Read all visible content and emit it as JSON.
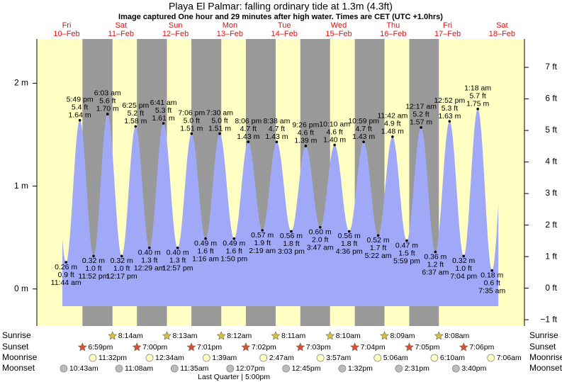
{
  "chart_data": {
    "type": "tide",
    "title": "Playa El Palmar: falling  ordinary tide at 1.3m (4.3ft)",
    "subtitle": "Image captured One hour and 29 minutes after high water. Times are CET (UTC +1.0hrs)",
    "days": [
      {
        "weekday": "Fri",
        "date": "10–Feb"
      },
      {
        "weekday": "Sat",
        "date": "11–Feb"
      },
      {
        "weekday": "Sun",
        "date": "12–Feb"
      },
      {
        "weekday": "Mon",
        "date": "13–Feb"
      },
      {
        "weekday": "Tue",
        "date": "14–Feb"
      },
      {
        "weekday": "Wed",
        "date": "15–Feb"
      },
      {
        "weekday": "Thu",
        "date": "16–Feb"
      },
      {
        "weekday": "Fri",
        "date": "17–Feb"
      },
      {
        "weekday": "Sat",
        "date": "18–Feb"
      }
    ],
    "extremes": [
      {
        "time": "11:44 am",
        "m": 0.26,
        "m_label": "0.26 m",
        "ft_label": "0.9 ft"
      },
      {
        "time": "5:49 pm",
        "m": 1.64,
        "m_label": "1.64 m",
        "ft_label": "5.4 ft"
      },
      {
        "time": "11:52 pm",
        "m": 0.32,
        "m_label": "0.32 m",
        "ft_label": "1.0 ft"
      },
      {
        "time": "6:03 am",
        "m": 1.7,
        "m_label": "1.70 m",
        "ft_label": "5.6 ft"
      },
      {
        "time": "12:17 pm",
        "m": 0.32,
        "m_label": "0.32 m",
        "ft_label": "1.0 ft"
      },
      {
        "time": "6:25 pm",
        "m": 1.58,
        "m_label": "1.58 m",
        "ft_label": "5.2 ft"
      },
      {
        "time": "12:29 am",
        "m": 0.4,
        "m_label": "0.40 m",
        "ft_label": "1.3 ft"
      },
      {
        "time": "6:41 am",
        "m": 1.61,
        "m_label": "1.61 m",
        "ft_label": "5.3 ft"
      },
      {
        "time": "12:57 pm",
        "m": 0.4,
        "m_label": "0.40 m",
        "ft_label": "1.3 ft"
      },
      {
        "time": "7:06 pm",
        "m": 1.51,
        "m_label": "1.51 m",
        "ft_label": "5.0 ft"
      },
      {
        "time": "1:16 am",
        "m": 0.49,
        "m_label": "0.49 m",
        "ft_label": "1.6 ft"
      },
      {
        "time": "7:30 am",
        "m": 1.51,
        "m_label": "1.51 m",
        "ft_label": "5.0 ft"
      },
      {
        "time": "1:50 pm",
        "m": 0.49,
        "m_label": "0.49 m",
        "ft_label": "1.6 ft"
      },
      {
        "time": "8:06 pm",
        "m": 1.43,
        "m_label": "1.43 m",
        "ft_label": "4.7 ft"
      },
      {
        "time": "2:19 am",
        "m": 0.57,
        "m_label": "0.57 m",
        "ft_label": "1.9 ft"
      },
      {
        "time": "8:38 am",
        "m": 1.43,
        "m_label": "1.43 m",
        "ft_label": "4.7 ft"
      },
      {
        "time": "3:03 pm",
        "m": 0.56,
        "m_label": "0.56 m",
        "ft_label": "1.8 ft"
      },
      {
        "time": "9:26 pm",
        "m": 1.39,
        "m_label": "1.39 m",
        "ft_label": "4.6 ft"
      },
      {
        "time": "3:47 am",
        "m": 0.6,
        "m_label": "0.60 m",
        "ft_label": "2.0 ft"
      },
      {
        "time": "10:10 am",
        "m": 1.4,
        "m_label": "1.40 m",
        "ft_label": "4.6 ft"
      },
      {
        "time": "4:36 pm",
        "m": 0.56,
        "m_label": "0.56 m",
        "ft_label": "1.8 ft"
      },
      {
        "time": "10:59 pm",
        "m": 1.43,
        "m_label": "1.43 m",
        "ft_label": "4.7 ft"
      },
      {
        "time": "5:22 am",
        "m": 0.52,
        "m_label": "0.52 m",
        "ft_label": "1.7 ft"
      },
      {
        "time": "11:42 am",
        "m": 1.48,
        "m_label": "1.48 m",
        "ft_label": "4.9 ft"
      },
      {
        "time": "5:59 pm",
        "m": 0.47,
        "m_label": "0.47 m",
        "ft_label": "1.5 ft"
      },
      {
        "time": "12:17 am",
        "m": 1.57,
        "m_label": "1.57 m",
        "ft_label": "5.2 ft"
      },
      {
        "time": "6:37 am",
        "m": 0.36,
        "m_label": "0.36 m",
        "ft_label": "1.2 ft"
      },
      {
        "time": "12:52 pm",
        "m": 1.63,
        "m_label": "1.63 m",
        "ft_label": "5.3 ft"
      },
      {
        "time": "7:04 pm",
        "m": 0.32,
        "m_label": "0.32 m",
        "ft_label": "1.0 ft"
      },
      {
        "time": "1:18 am",
        "m": 1.75,
        "m_label": "1.75 m",
        "ft_label": "5.7 ft"
      },
      {
        "time": "7:35 am",
        "m": 0.18,
        "m_label": "0.18 m",
        "ft_label": "0.6 ft"
      }
    ],
    "ylim": [
      -0.36,
      2.43
    ],
    "yticks": [
      {
        "value": 0,
        "label": "0 m"
      },
      {
        "value": 1,
        "label": "1 m"
      },
      {
        "value": 2,
        "label": "2 m"
      }
    ],
    "y2lim": [
      -1.2,
      7.9
    ],
    "y2ticks": [
      {
        "value": -1,
        "label": "−1 ft"
      },
      {
        "value": 0,
        "label": "0 ft"
      },
      {
        "value": 1,
        "label": "1 ft"
      },
      {
        "value": 2,
        "label": "2 ft"
      },
      {
        "value": 3,
        "label": "3 ft"
      },
      {
        "value": 4,
        "label": "4 ft"
      },
      {
        "value": 5,
        "label": "5 ft"
      },
      {
        "value": 6,
        "label": "6 ft"
      },
      {
        "value": 7,
        "label": "7 ft"
      }
    ],
    "color": "#a0a8f8",
    "astro": [
      {
        "name": "Sunrise",
        "times": [
          null,
          "8:14am",
          "8:13am",
          "8:12am",
          "8:11am",
          "8:10am",
          "8:09am",
          "8:08am",
          null
        ]
      },
      {
        "name": "Sunset",
        "times": [
          "6:59pm",
          "7:00pm",
          "7:01pm",
          "7:02pm",
          "7:03pm",
          "7:04pm",
          "7:05pm",
          "7:06pm",
          null
        ]
      },
      {
        "name": "Moonrise",
        "times": [
          "11:32pm",
          null,
          "12:34am",
          "1:39am",
          "2:47am",
          "3:57am",
          "5:06am",
          "6:10am",
          "7:06am"
        ]
      },
      {
        "name": "Moonset",
        "times": [
          "10:43am",
          "11:08am",
          "11:35am",
          "12:07pm",
          "12:45pm",
          "1:32pm",
          "2:31pm",
          "3:40pm",
          null
        ]
      }
    ],
    "moon_phase": "Last Quarter | 5:00pm"
  }
}
